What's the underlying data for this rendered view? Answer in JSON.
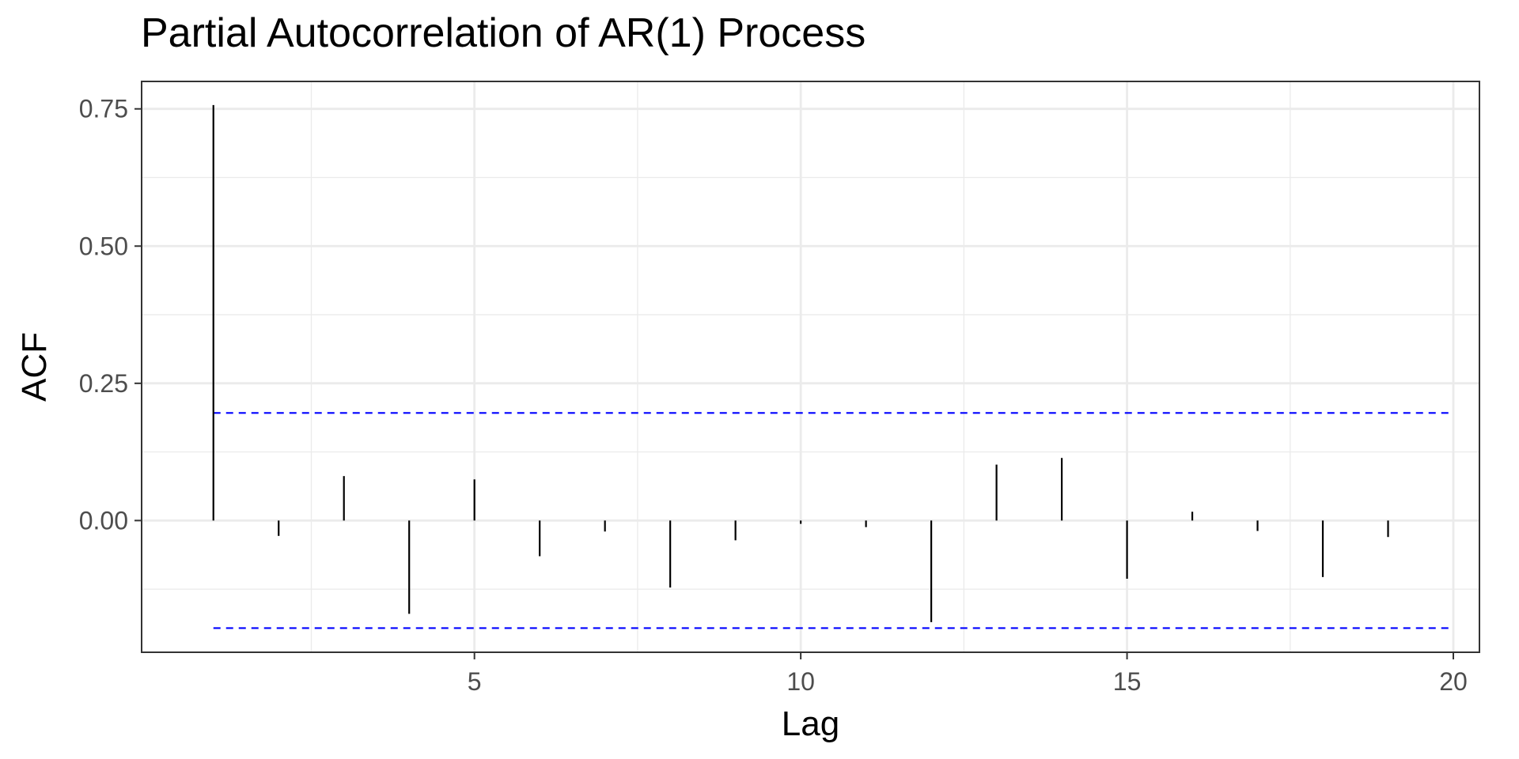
{
  "chart_data": {
    "type": "bar",
    "title": "Partial Autocorrelation of AR(1) Process",
    "xlabel": "Lag",
    "ylabel": "ACF",
    "x": [
      1,
      2,
      3,
      4,
      5,
      6,
      7,
      8,
      9,
      10,
      11,
      12,
      13,
      14,
      15,
      16,
      17,
      18,
      19
    ],
    "values": [
      0.757,
      -0.028,
      0.081,
      -0.17,
      0.075,
      -0.065,
      -0.02,
      -0.122,
      -0.036,
      -0.006,
      -0.012,
      -0.185,
      0.102,
      0.114,
      -0.106,
      0.016,
      -0.019,
      -0.103,
      -0.03
    ],
    "confidence_bound": 0.196,
    "xlim": [
      -0.1,
      20.4
    ],
    "ylim": [
      -0.24,
      0.8
    ],
    "x_ticks": [
      5,
      10,
      15,
      20
    ],
    "x_tick_labels": [
      "5",
      "10",
      "15",
      "20"
    ],
    "y_ticks": [
      0,
      0.25,
      0.5,
      0.75
    ],
    "y_tick_labels": [
      "0.00",
      "0.25",
      "0.50",
      "0.75"
    ],
    "grid": true,
    "bar_color": "#000000",
    "bound_color": "#0000ff",
    "grid_color": "#ebebeb",
    "panel_border_color": "#333333"
  }
}
